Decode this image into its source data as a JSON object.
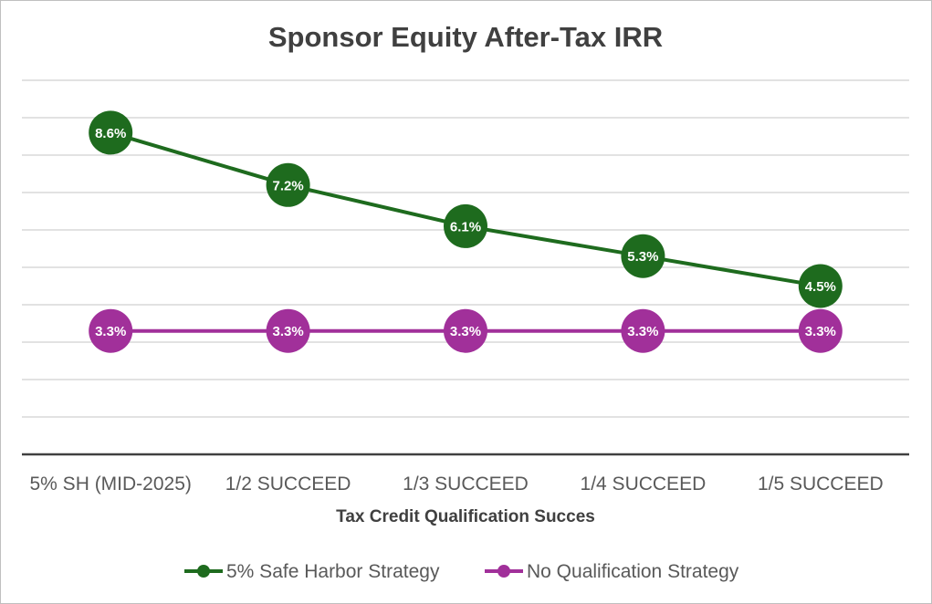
{
  "chart_data": {
    "type": "line",
    "title": "Sponsor Equity After-Tax IRR",
    "xlabel": "Tax Credit Qualification Succes",
    "ylabel": "",
    "categories": [
      "5% SH (MID-2025)",
      "1/2 SUCCEED",
      "1/3 SUCCEED",
      "1/4 SUCCEED",
      "1/5 SUCCEED"
    ],
    "ylim": [
      0,
      10
    ],
    "grid": true,
    "legend_position": "bottom",
    "series": [
      {
        "name": "5% Safe Harbor Strategy",
        "color": "#1e6b1e",
        "values": [
          8.6,
          7.2,
          6.1,
          5.3,
          4.5
        ],
        "labels": [
          "8.6%",
          "7.2%",
          "6.1%",
          "5.3%",
          "4.5%"
        ]
      },
      {
        "name": "No Qualification Strategy",
        "color": "#a1309a",
        "values": [
          3.3,
          3.3,
          3.3,
          3.3,
          3.3
        ],
        "labels": [
          "3.3%",
          "3.3%",
          "3.3%",
          "3.3%",
          "3.3%"
        ]
      }
    ]
  }
}
